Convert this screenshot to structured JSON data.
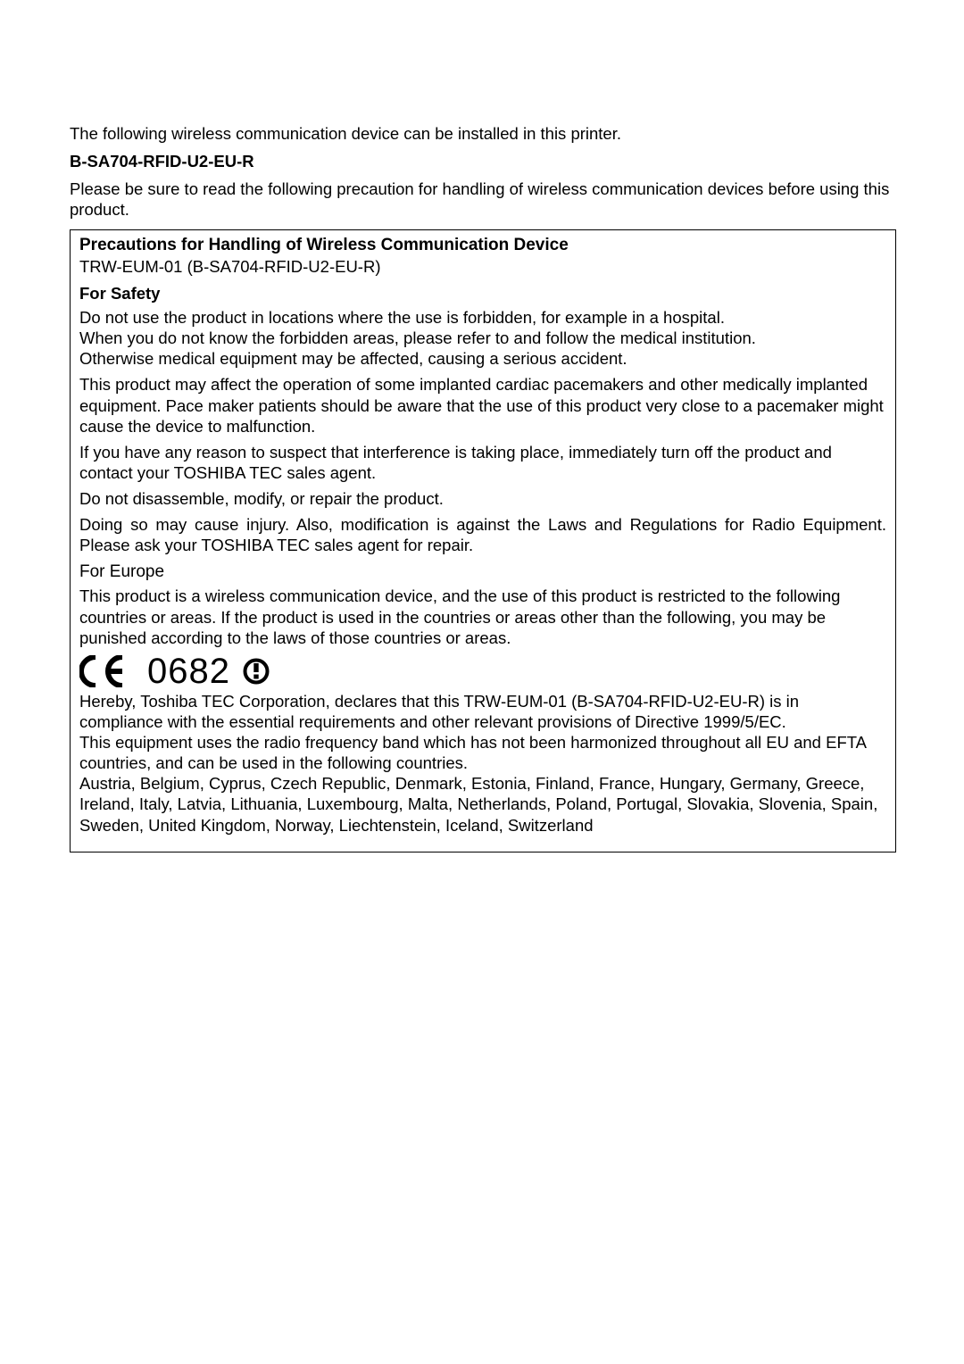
{
  "intro": "The following wireless communication device can be installed in this printer.",
  "model": "B-SA704-RFID-U2-EU-R",
  "prelude": "Please be sure to read the following precaution for handling of wireless communication devices before using this product.",
  "box": {
    "title": "Precautions for Handling of Wireless Communication Device",
    "subtitle": "TRW-EUM-01 (B-SA704-RFID-U2-EU-R)",
    "safety_title": "For Safety",
    "p1": "Do not use the product in locations where the use is forbidden, for example in a hospital.\nWhen you do not know the forbidden areas, please refer to and follow the medical institution.\nOtherwise medical equipment may be affected, causing a serious accident.",
    "p2": "This product may affect the operation of some implanted cardiac pacemakers and other medically implanted equipment. Pace maker patients should be aware that the use of this product very close to a pacemaker might cause the device to malfunction.",
    "p3": "If you have any reason to suspect that interference is taking place, immediately turn off the product and contact your TOSHIBA TEC sales agent.",
    "p4": "Do not disassemble, modify, or repair the product.",
    "p5": "Doing so may cause injury. Also, modification is against the Laws and Regulations for Radio Equipment. Please ask your TOSHIBA TEC sales agent for repair.",
    "region": "For Europe",
    "p6": "This product is a wireless communication device, and the use of this product is restricted to the following countries or areas. If the product is used in the countries or areas other than the following, you may be punished according to the laws of those countries or areas.",
    "ce_number": "0682",
    "p7": "Hereby, Toshiba TEC Corporation, declares that this TRW-EUM-01 (B-SA704-RFID-U2-EU-R) is in compliance with the essential requirements and other relevant provisions of Directive 1999/5/EC.\nThis equipment uses the radio frequency band which has not been harmonized throughout all EU and EFTA countries, and can be used in the following countries.\nAustria, Belgium, Cyprus, Czech Republic, Denmark, Estonia, Finland, France, Hungary, Germany, Greece, Ireland, Italy, Latvia, Lithuania, Luxembourg, Malta, Netherlands, Poland, Portugal, Slovakia, Slovenia, Spain, Sweden, United Kingdom, Norway, Liechtenstein, Iceland, Switzerland"
  }
}
